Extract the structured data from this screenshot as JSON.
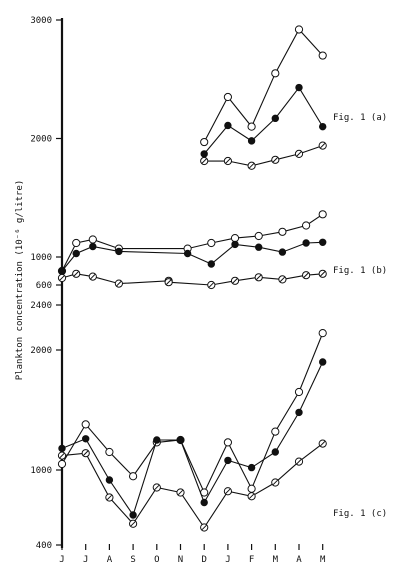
{
  "chart_data": {
    "type": "line",
    "ylabel": "Plankton concentration (10⁻⁶ g/litre)",
    "months": [
      "J",
      "J",
      "A",
      "S",
      "O",
      "N",
      "D",
      "J",
      "F",
      "M",
      "A",
      "M"
    ],
    "panels": [
      {
        "label": "Fig. 1 (a)",
        "ylim": [
          1000,
          3000
        ],
        "tick_labels": [
          "3000",
          "2000",
          "1000"
        ],
        "ticks": [
          3000,
          2000,
          1000
        ],
        "series": [
          {
            "marker": "open",
            "x": [
              6,
              7,
              8,
              9,
              10,
              11
            ],
            "values": [
              1970,
              2350,
              2100,
              2550,
              2920,
              2700
            ]
          },
          {
            "marker": "filled",
            "x": [
              6,
              7,
              8,
              9,
              10,
              11
            ],
            "values": [
              1870,
              2110,
              1980,
              2170,
              2430,
              2100
            ]
          },
          {
            "marker": "dotted",
            "x": [
              6,
              7,
              8,
              9,
              10,
              11
            ],
            "values": [
              1810,
              1810,
              1770,
              1820,
              1870,
              1940
            ]
          }
        ]
      },
      {
        "label": "Fig. 1 (b)",
        "ylim": [
          600,
          1700
        ],
        "tick_labels": [
          "600"
        ],
        "ticks": [
          600
        ],
        "series": [
          {
            "marker": "open",
            "x": [
              0,
              0.6,
              1.3,
              2.4,
              5.3,
              6.3,
              7.3,
              8.3,
              9.3,
              10.3,
              11
            ],
            "values": [
              800,
              1200,
              1250,
              1120,
              1120,
              1200,
              1270,
              1300,
              1360,
              1450,
              1610
            ]
          },
          {
            "marker": "filled",
            "x": [
              0,
              0.6,
              1.3,
              2.4,
              5.3,
              6.3,
              7.3,
              8.3,
              9.3,
              10.3,
              11
            ],
            "values": [
              800,
              1050,
              1150,
              1080,
              1050,
              900,
              1180,
              1140,
              1070,
              1200,
              1210
            ]
          },
          {
            "marker": "dotted",
            "x": [
              0,
              0.6,
              1.3,
              2.4,
              4.5,
              4.5,
              6.3,
              7.3,
              8.3,
              9.3,
              10.3,
              11
            ],
            "values": [
              700,
              760,
              720,
              620,
              660,
              640,
              600,
              660,
              710,
              680,
              740,
              760
            ]
          }
        ]
      },
      {
        "label": "Fig. 1 (c)",
        "ylim": [
          400,
          2400
        ],
        "tick_labels": [
          "2400",
          "2000",
          "1000",
          "400"
        ],
        "ticks": [
          2400,
          2000,
          1000,
          400
        ],
        "series": [
          {
            "marker": "open",
            "x": [
              0,
              1,
              2,
              3,
              4,
              5,
              6,
              7,
              8,
              9,
              10,
              11
            ],
            "values": [
              1050,
              1380,
              1150,
              950,
              1230,
              1250,
              820,
              1230,
              850,
              1320,
              1650,
              2150
            ]
          },
          {
            "marker": "filled",
            "x": [
              0,
              1,
              2,
              3,
              4,
              5,
              6,
              7,
              8,
              9,
              10,
              11
            ],
            "values": [
              1180,
              1260,
              920,
              640,
              1250,
              1250,
              740,
              1080,
              1020,
              1150,
              1480,
              1900
            ]
          },
          {
            "marker": "dotted",
            "x": [
              0,
              1,
              2,
              3,
              4,
              5,
              6,
              7,
              8,
              9,
              10,
              11
            ],
            "values": [
              1120,
              1140,
              780,
              570,
              860,
              820,
              540,
              830,
              790,
              900,
              1070,
              1220
            ]
          }
        ]
      }
    ]
  }
}
